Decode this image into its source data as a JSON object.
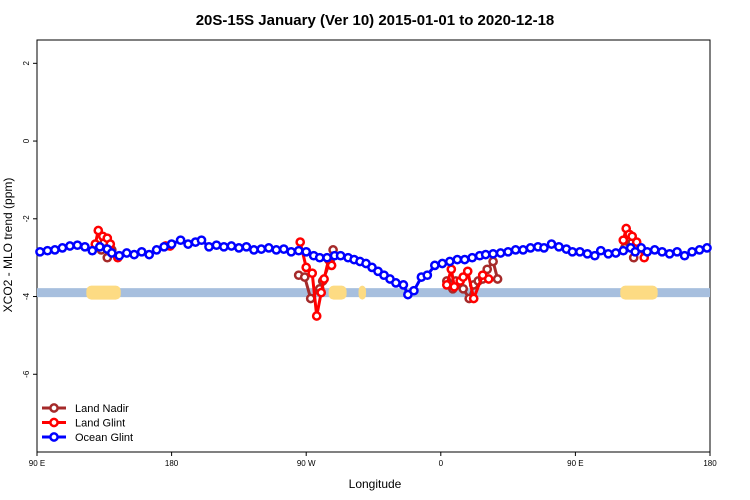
{
  "chart_data": {
    "type": "line",
    "title": "20S-15S January (Ver 10)   2015-01-01 to 2020-12-18",
    "xlabel": "Longitude",
    "ylabel": "XCO2 - MLO trend (ppm)",
    "xlim": [
      90,
      540
    ],
    "ylim": [
      -8,
      2.6
    ],
    "x_ticks": [
      {
        "value": 90,
        "label": "90 E"
      },
      {
        "value": 180,
        "label": "180"
      },
      {
        "value": 270,
        "label": "90 W"
      },
      {
        "value": 360,
        "label": "0"
      },
      {
        "value": 450,
        "label": "90 E"
      },
      {
        "value": 540,
        "label": "180"
      }
    ],
    "y_ticks": [
      {
        "value": 2,
        "label": "2"
      },
      {
        "value": 0,
        "label": "0"
      },
      {
        "value": -2,
        "label": "-2"
      },
      {
        "value": -4,
        "label": "-4"
      },
      {
        "value": -6,
        "label": "-6"
      }
    ],
    "grid": false,
    "legend_position": "bottom-left",
    "surface_strip": {
      "y": -3.9,
      "ocean_color": "#a7bfde",
      "land_color": "#fddb83",
      "land_ranges": [
        [
          123,
          146
        ],
        [
          285,
          297
        ],
        [
          305,
          310
        ],
        [
          480,
          505
        ]
      ]
    },
    "series": [
      {
        "name": "Land Nadir",
        "color": "#a52a2a",
        "segments": [
          [
            [
              133,
              -2.8
            ],
            [
              135,
              -2.6
            ],
            [
              137,
              -3.0
            ],
            [
              140,
              -2.8
            ]
          ],
          [
            [
              265,
              -3.45
            ],
            [
              269,
              -3.5
            ],
            [
              273,
              -4.05
            ],
            [
              279,
              -3.8
            ],
            [
              281,
              -3.6
            ],
            [
              286,
              -3.1
            ],
            [
              288,
              -2.8
            ]
          ],
          [
            [
              364,
              -3.6
            ],
            [
              368,
              -3.8
            ],
            [
              370,
              -3.6
            ],
            [
              375,
              -3.8
            ],
            [
              379,
              -4.05
            ],
            [
              382,
              -3.7
            ],
            [
              385,
              -3.6
            ],
            [
              388,
              -3.55
            ],
            [
              391,
              -3.3
            ],
            [
              395,
              -3.1
            ],
            [
              398,
              -3.55
            ]
          ],
          [
            [
              483,
              -2.75
            ],
            [
              486,
              -2.5
            ],
            [
              488,
              -2.6
            ],
            [
              489,
              -3.0
            ],
            [
              491,
              -2.75
            ]
          ]
        ]
      },
      {
        "name": "Land Glint",
        "color": "#ff0000",
        "segments": [
          [
            [
              129,
              -2.65
            ],
            [
              131,
              -2.3
            ],
            [
              134,
              -2.45
            ],
            [
              137,
              -2.5
            ],
            [
              139,
              -2.65
            ],
            [
              144,
              -3.0
            ]
          ],
          [
            [
              176,
              -2.7
            ],
            [
              179,
              -2.7
            ]
          ],
          [
            [
              266,
              -2.6
            ],
            [
              270,
              -3.25
            ],
            [
              274,
              -3.4
            ],
            [
              277,
              -4.5
            ],
            [
              280,
              -3.9
            ],
            [
              282,
              -3.55
            ],
            [
              285,
              -3.05
            ],
            [
              287,
              -3.2
            ]
          ],
          [
            [
              364,
              -3.7
            ],
            [
              367,
              -3.3
            ],
            [
              369,
              -3.75
            ],
            [
              373,
              -3.6
            ],
            [
              375,
              -3.5
            ],
            [
              378,
              -3.35
            ],
            [
              382,
              -4.05
            ],
            [
              388,
              -3.45
            ],
            [
              392,
              -3.55
            ]
          ],
          [
            [
              482,
              -2.55
            ],
            [
              484,
              -2.25
            ],
            [
              486,
              -2.4
            ],
            [
              488,
              -2.45
            ],
            [
              491,
              -2.6
            ],
            [
              496,
              -3.0
            ]
          ]
        ]
      },
      {
        "name": "Ocean Glint",
        "color": "#0000ff",
        "segments": [
          [
            [
              92,
              -2.85
            ],
            [
              97,
              -2.82
            ],
            [
              102,
              -2.8
            ],
            [
              107,
              -2.75
            ],
            [
              112,
              -2.7
            ],
            [
              117,
              -2.68
            ],
            [
              122,
              -2.72
            ],
            [
              127,
              -2.82
            ],
            [
              132,
              -2.72
            ],
            [
              137,
              -2.78
            ],
            [
              140,
              -2.88
            ],
            [
              145,
              -2.95
            ],
            [
              150,
              -2.88
            ],
            [
              155,
              -2.92
            ],
            [
              160,
              -2.85
            ],
            [
              165,
              -2.92
            ],
            [
              170,
              -2.8
            ],
            [
              175,
              -2.72
            ],
            [
              180,
              -2.65
            ],
            [
              186,
              -2.55
            ],
            [
              191,
              -2.65
            ],
            [
              196,
              -2.6
            ],
            [
              200,
              -2.55
            ],
            [
              205,
              -2.72
            ],
            [
              210,
              -2.68
            ],
            [
              215,
              -2.72
            ],
            [
              220,
              -2.7
            ],
            [
              225,
              -2.75
            ],
            [
              230,
              -2.72
            ],
            [
              235,
              -2.8
            ],
            [
              240,
              -2.78
            ],
            [
              245,
              -2.75
            ],
            [
              250,
              -2.8
            ],
            [
              255,
              -2.78
            ],
            [
              260,
              -2.85
            ],
            [
              265,
              -2.82
            ],
            [
              270,
              -2.85
            ],
            [
              275,
              -2.95
            ],
            [
              279,
              -3.0
            ],
            [
              284,
              -3.0
            ],
            [
              289,
              -2.95
            ],
            [
              293,
              -2.95
            ],
            [
              298,
              -3.0
            ],
            [
              302,
              -3.05
            ],
            [
              306,
              -3.1
            ],
            [
              310,
              -3.15
            ],
            [
              314,
              -3.25
            ],
            [
              318,
              -3.35
            ],
            [
              322,
              -3.45
            ],
            [
              326,
              -3.55
            ],
            [
              330,
              -3.65
            ]
          ],
          [
            [
              335,
              -3.7
            ],
            [
              338,
              -3.95
            ],
            [
              342,
              -3.85
            ],
            [
              347,
              -3.5
            ],
            [
              351,
              -3.45
            ],
            [
              356,
              -3.2
            ],
            [
              361,
              -3.15
            ],
            [
              366,
              -3.1
            ],
            [
              371,
              -3.05
            ],
            [
              376,
              -3.05
            ],
            [
              381,
              -3.0
            ],
            [
              386,
              -2.95
            ],
            [
              390,
              -2.92
            ],
            [
              395,
              -2.9
            ],
            [
              400,
              -2.88
            ],
            [
              405,
              -2.85
            ],
            [
              410,
              -2.8
            ],
            [
              415,
              -2.8
            ],
            [
              420,
              -2.75
            ],
            [
              425,
              -2.72
            ],
            [
              429,
              -2.75
            ],
            [
              434,
              -2.65
            ],
            [
              439,
              -2.72
            ],
            [
              444,
              -2.78
            ],
            [
              448,
              -2.85
            ],
            [
              453,
              -2.85
            ],
            [
              458,
              -2.9
            ],
            [
              463,
              -2.95
            ],
            [
              467,
              -2.82
            ],
            [
              472,
              -2.9
            ],
            [
              477,
              -2.88
            ],
            [
              482,
              -2.82
            ],
            [
              487,
              -2.75
            ],
            [
              490,
              -2.85
            ],
            [
              494,
              -2.75
            ],
            [
              498,
              -2.85
            ],
            [
              503,
              -2.8
            ],
            [
              508,
              -2.85
            ],
            [
              513,
              -2.9
            ],
            [
              518,
              -2.85
            ],
            [
              523,
              -2.95
            ],
            [
              528,
              -2.85
            ],
            [
              533,
              -2.8
            ],
            [
              538,
              -2.75
            ]
          ]
        ]
      }
    ]
  }
}
